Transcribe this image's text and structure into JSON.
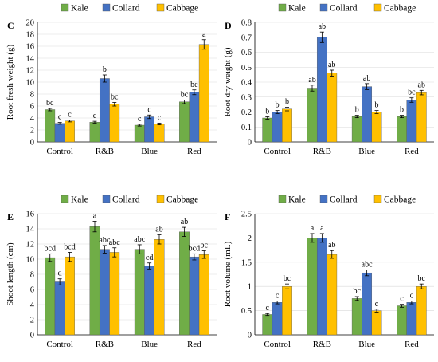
{
  "series_colors": {
    "Kale": "#70ad47",
    "Collard": "#4472c4",
    "Cabbage": "#ffc000"
  },
  "legend": [
    "Kale",
    "Collard",
    "Cabbage"
  ],
  "chart_data": [
    {
      "panel": "C",
      "type": "bar",
      "ylabel": "Root fresh weight (g)",
      "ylim": [
        0,
        20
      ],
      "yticks": [
        "0",
        "2",
        "4",
        "6",
        "8",
        "10",
        "12",
        "14",
        "16",
        "18",
        "20"
      ],
      "ytick_values": [
        0,
        2,
        4,
        6,
        8,
        10,
        12,
        14,
        16,
        18,
        20
      ],
      "grid": true,
      "legend_position": "top",
      "categories": [
        "Control",
        "R&B",
        "Blue",
        "Red"
      ],
      "series": [
        {
          "name": "Kale",
          "values": [
            5.4,
            3.3,
            2.8,
            6.7
          ],
          "errors": [
            0.2,
            0.15,
            0.15,
            0.3
          ],
          "labels": [
            "bc",
            "c",
            "c",
            "bc"
          ]
        },
        {
          "name": "Collard",
          "values": [
            3.1,
            10.6,
            4.2,
            8.3
          ],
          "errors": [
            0.15,
            0.6,
            0.3,
            0.4
          ],
          "labels": [
            "c",
            "b",
            "c",
            "bc"
          ]
        },
        {
          "name": "Cabbage",
          "values": [
            3.5,
            6.3,
            3.0,
            16.3
          ],
          "errors": [
            0.15,
            0.3,
            0.15,
            0.8
          ],
          "labels": [
            "c",
            "bc",
            "c",
            "a"
          ]
        }
      ]
    },
    {
      "panel": "D",
      "type": "bar",
      "ylabel": "Root dry weight (g)",
      "ylim": [
        0,
        0.8
      ],
      "yticks": [
        "0",
        "0.1",
        "0.2",
        "0.3",
        "0.4",
        "0.5",
        "0.6",
        "0.7",
        "0.8"
      ],
      "ytick_values": [
        0,
        0.1,
        0.2,
        0.3,
        0.4,
        0.5,
        0.6,
        0.7,
        0.8
      ],
      "grid": true,
      "legend_position": "top",
      "categories": [
        "Control",
        "R&B",
        "Blue",
        "Red"
      ],
      "series": [
        {
          "name": "Kale",
          "values": [
            0.16,
            0.36,
            0.17,
            0.17
          ],
          "errors": [
            0.008,
            0.02,
            0.008,
            0.008
          ],
          "labels": [
            "b",
            "ab",
            "b",
            "b"
          ]
        },
        {
          "name": "Collard",
          "values": [
            0.2,
            0.7,
            0.37,
            0.28
          ],
          "errors": [
            0.01,
            0.035,
            0.02,
            0.015
          ],
          "labels": [
            "b",
            "ab",
            "ab",
            "bc"
          ]
        },
        {
          "name": "Cabbage",
          "values": [
            0.22,
            0.46,
            0.2,
            0.33
          ],
          "errors": [
            0.012,
            0.02,
            0.01,
            0.015
          ],
          "labels": [
            "b",
            "ab",
            "b",
            "ab"
          ]
        }
      ]
    },
    {
      "panel": "E",
      "type": "bar",
      "ylabel": "Shoot length (cm)",
      "ylim": [
        0,
        16
      ],
      "yticks": [
        "0",
        "2",
        "4",
        "6",
        "8",
        "10",
        "12",
        "14",
        "16"
      ],
      "ytick_values": [
        0,
        2,
        4,
        6,
        8,
        10,
        12,
        14,
        16
      ],
      "grid": true,
      "legend_position": "top",
      "categories": [
        "Control",
        "R&B",
        "Blue",
        "Red"
      ],
      "series": [
        {
          "name": "Kale",
          "values": [
            10.2,
            14.3,
            11.3,
            13.6
          ],
          "errors": [
            0.5,
            0.7,
            0.6,
            0.6
          ],
          "labels": [
            "bcd",
            "a",
            "abc",
            "ab"
          ]
        },
        {
          "name": "Collard",
          "values": [
            7.0,
            11.3,
            9.1,
            10.3
          ],
          "errors": [
            0.4,
            0.5,
            0.4,
            0.4
          ],
          "labels": [
            "d",
            "abc",
            "cd",
            "bcd"
          ]
        },
        {
          "name": "Cabbage",
          "values": [
            10.3,
            10.9,
            12.6,
            10.6
          ],
          "errors": [
            0.6,
            0.6,
            0.6,
            0.5
          ],
          "labels": [
            "bcd",
            "abc",
            "ab",
            "bc"
          ]
        }
      ]
    },
    {
      "panel": "F",
      "type": "bar",
      "ylabel": "Root volume (mL)",
      "ylim": [
        0,
        2.5
      ],
      "yticks": [
        "0",
        "0.5",
        "1",
        "1.5",
        "2",
        "2.5"
      ],
      "ytick_values": [
        0,
        0.5,
        1,
        1.5,
        2,
        2.5
      ],
      "grid": true,
      "legend_position": "top",
      "categories": [
        "Control",
        "R&B",
        "Blue",
        "Red"
      ],
      "series": [
        {
          "name": "Kale",
          "values": [
            0.42,
            2.0,
            0.75,
            0.6
          ],
          "errors": [
            0.02,
            0.09,
            0.04,
            0.03
          ],
          "labels": [
            "c",
            "a",
            "bc",
            "c"
          ]
        },
        {
          "name": "Collard",
          "values": [
            0.67,
            2.0,
            1.28,
            0.67
          ],
          "errors": [
            0.03,
            0.09,
            0.06,
            0.03
          ],
          "labels": [
            "c",
            "a",
            "abc",
            "c"
          ]
        },
        {
          "name": "Cabbage",
          "values": [
            1.0,
            1.66,
            0.5,
            1.0
          ],
          "errors": [
            0.05,
            0.08,
            0.03,
            0.05
          ],
          "labels": [
            "bc",
            "ab",
            "c",
            "bc"
          ]
        }
      ]
    }
  ]
}
